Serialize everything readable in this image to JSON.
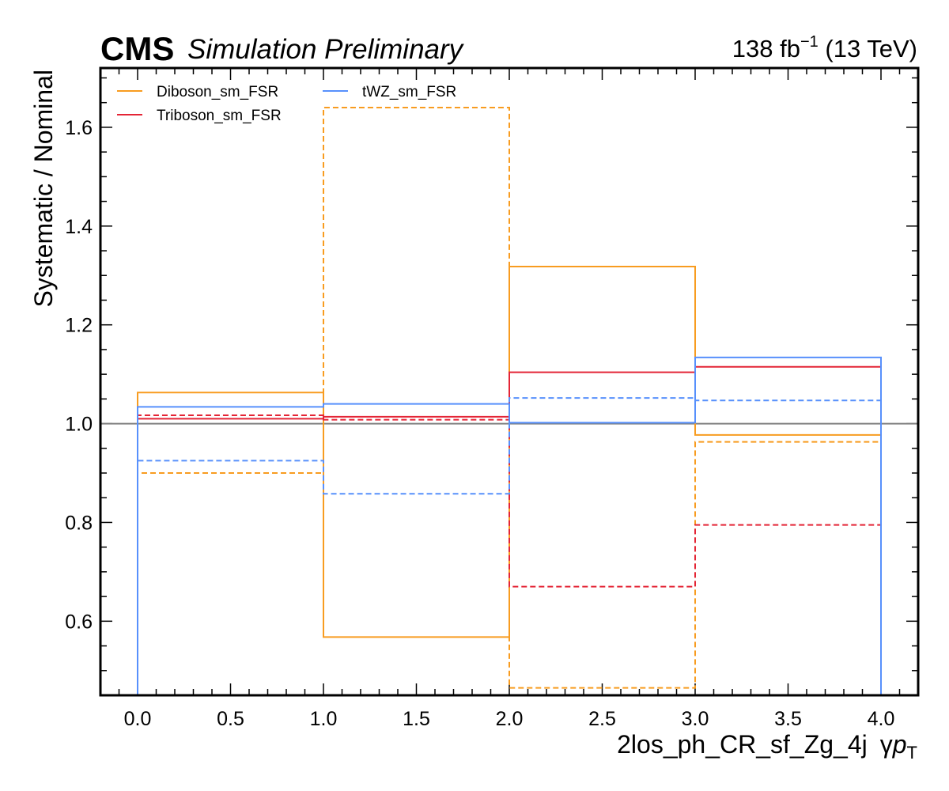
{
  "header": {
    "experiment": "CMS",
    "status": "Simulation Preliminary",
    "lumi_value": "138 fb",
    "lumi_exponent": "−1",
    "energy": " (13 TeV)"
  },
  "chart_data": {
    "type": "step",
    "xlabel_region": "2los_ph_CR_sf_Zg_4j",
    "xlabel_var_gamma": "γ",
    "xlabel_var_p": "p",
    "xlabel_var_sub": "T",
    "ylabel": "Systematic / Nominal",
    "xlim": [
      -0.2,
      4.2
    ],
    "ylim": [
      0.45,
      1.72
    ],
    "x_ticks": [
      0.0,
      0.5,
      1.0,
      1.5,
      2.0,
      2.5,
      3.0,
      3.5,
      4.0
    ],
    "x_tick_labels": [
      "0.0",
      "0.5",
      "1.0",
      "1.5",
      "2.0",
      "2.5",
      "3.0",
      "3.5",
      "4.0"
    ],
    "y_ticks": [
      0.6,
      0.8,
      1.0,
      1.2,
      1.4,
      1.6
    ],
    "y_tick_labels": [
      "0.6",
      "0.8",
      "1.0",
      "1.2",
      "1.4",
      "1.6"
    ],
    "bin_edges": [
      0,
      1,
      2,
      3,
      4
    ],
    "reference_line": {
      "y": 1.0,
      "color": "#808080"
    },
    "legend_position": "top-left",
    "legend": [
      {
        "label": "Diboson_sm_FSR",
        "color": "#f89c20"
      },
      {
        "label": "Triboson_sm_FSR",
        "color": "#e42536"
      },
      {
        "label": "tWZ_sm_FSR",
        "color": "#5790fc"
      }
    ],
    "series": [
      {
        "name": "Diboson_sm_FSR",
        "variation": "up",
        "style": "solid",
        "color": "#f89c20",
        "values": [
          1.063,
          0.568,
          1.318,
          0.977
        ]
      },
      {
        "name": "Diboson_sm_FSR",
        "variation": "down",
        "style": "dashed",
        "color": "#f89c20",
        "values": [
          0.9,
          1.64,
          0.465,
          0.963
        ]
      },
      {
        "name": "Triboson_sm_FSR",
        "variation": "up",
        "style": "solid",
        "color": "#e42536",
        "values": [
          1.01,
          1.014,
          1.104,
          1.115
        ]
      },
      {
        "name": "Triboson_sm_FSR",
        "variation": "down",
        "style": "dashed",
        "color": "#e42536",
        "values": [
          1.017,
          1.008,
          0.67,
          0.795
        ]
      },
      {
        "name": "tWZ_sm_FSR",
        "variation": "up",
        "style": "solid",
        "color": "#5790fc",
        "values": [
          1.034,
          1.04,
          1.002,
          1.134
        ]
      },
      {
        "name": "tWZ_sm_FSR",
        "variation": "down",
        "style": "dashed",
        "color": "#5790fc",
        "values": [
          0.925,
          0.858,
          1.052,
          1.047
        ]
      }
    ]
  }
}
